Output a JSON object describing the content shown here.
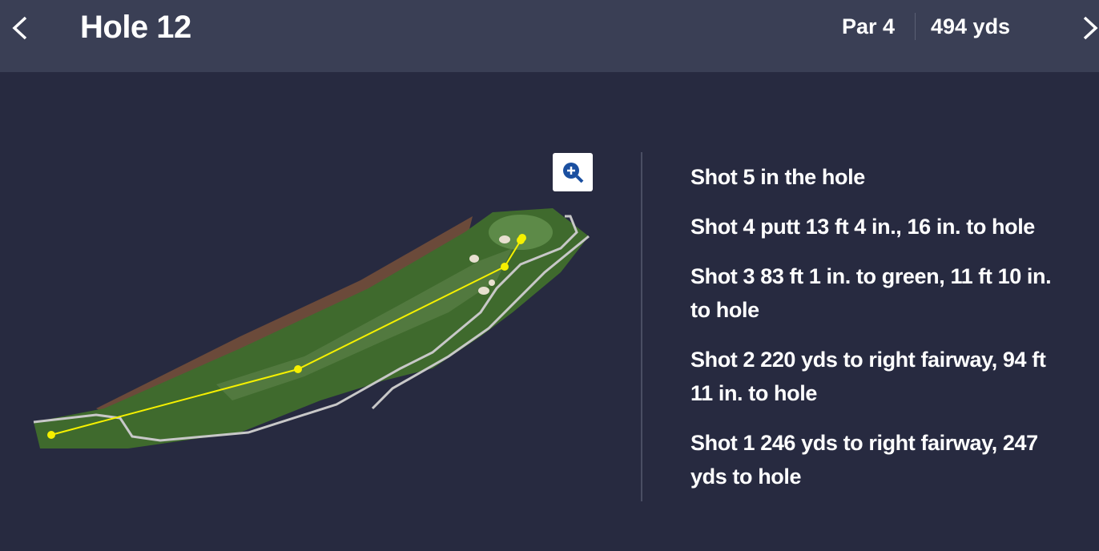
{
  "header": {
    "title": "Hole 12",
    "par": "Par 4",
    "yards": "494 yds"
  },
  "shots": [
    "Shot 5 in the hole",
    "Shot 4 putt 13 ft 4 in., 16 in. to hole",
    "Shot 3 83 ft 1 in. to green, 11 ft 10 in. to hole",
    "Shot 2 220 yds to right fairway, 94 ft 11 in. to hole",
    "Shot 1 246 yds to right fairway, 247 yds to hole"
  ]
}
